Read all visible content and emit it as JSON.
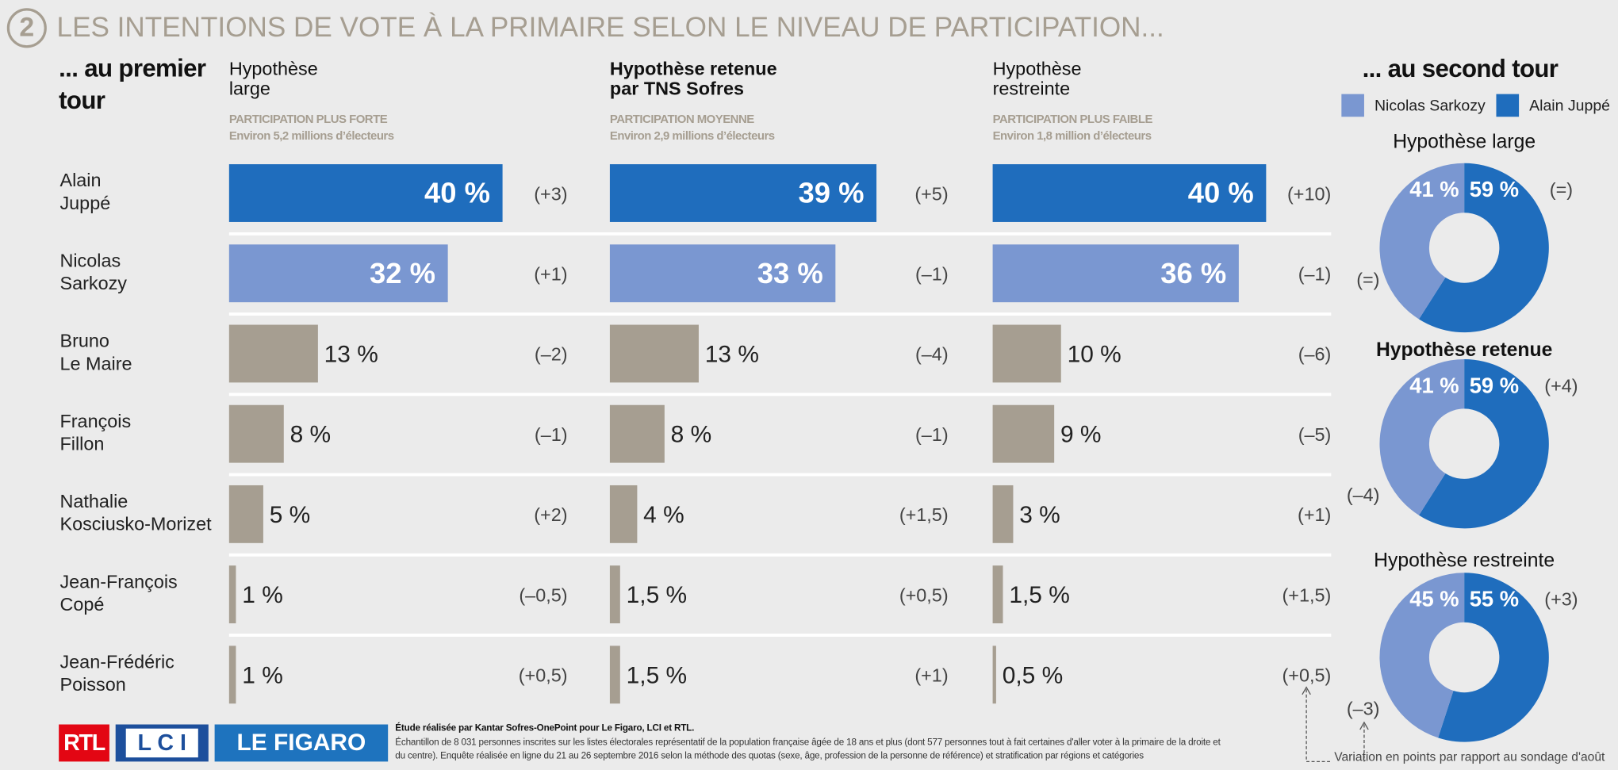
{
  "number": "2",
  "title": "LES INTENTIONS DE VOTE À LA PRIMAIRE SELON LE NIVEAU DE PARTICIPATION...",
  "first_round": "... au premier tour",
  "second_round": "... au second tour",
  "chart_data": [
    {
      "type": "bar",
      "title": "Hypothèse large",
      "subtitle": "PARTICIPATION PLUS FORTE",
      "note": "Environ 5,2 millions d’électeurs",
      "categories": [
        "Alain Juppé",
        "Nicolas Sarkozy",
        "Bruno Le Maire",
        "François Fillon",
        "Nathalie Kosciusko-Morizet",
        "Jean-François Copé",
        "Jean-Frédéric Poisson"
      ],
      "values": [
        40,
        32,
        13,
        8,
        5,
        1,
        1
      ],
      "value_labels": [
        "40 %",
        "32 %",
        "13 %",
        "8 %",
        "5 %",
        "1 %",
        "1 %"
      ],
      "changes": [
        "(+3)",
        "(+1)",
        "(–2)",
        "(–1)",
        "(+2)",
        "(–0,5)",
        "(+0,5)"
      ],
      "colors": [
        "#1f6dbd",
        "#7a97d1",
        "#a69e91",
        "#a69e91",
        "#a69e91",
        "#a69e91",
        "#a69e91"
      ],
      "xlim": [
        0,
        40
      ]
    },
    {
      "type": "bar",
      "title": "Hypothèse retenue par TNS Sofres",
      "subtitle": "PARTICIPATION MOYENNE",
      "note": "Environ 2,9 millions d’électeurs",
      "values": [
        39,
        33,
        13,
        8,
        4,
        1.5,
        1.5
      ],
      "value_labels": [
        "39 %",
        "33 %",
        "13 %",
        "8 %",
        "4 %",
        "1,5 %",
        "1,5 %"
      ],
      "changes": [
        "(+5)",
        "(–1)",
        "(–4)",
        "(–1)",
        "(+1,5)",
        "(+0,5)",
        "(+1)"
      ],
      "colors": [
        "#1f6dbd",
        "#7a97d1",
        "#a69e91",
        "#a69e91",
        "#a69e91",
        "#a69e91",
        "#a69e91"
      ],
      "xlim": [
        0,
        40
      ]
    },
    {
      "type": "bar",
      "title": "Hypothèse restreinte",
      "subtitle": "PARTICIPATION PLUS FAIBLE",
      "note": "Environ 1,8 million d’électeurs",
      "values": [
        40,
        36,
        10,
        9,
        3,
        1.5,
        0.5
      ],
      "value_labels": [
        "40 %",
        "36 %",
        "10 %",
        "9 %",
        "3 %",
        "1,5 %",
        "0,5 %"
      ],
      "changes": [
        "(+10)",
        "(–1)",
        "(–6)",
        "(–5)",
        "(+1)",
        "(+1,5)",
        "(+0,5)"
      ],
      "colors": [
        "#1f6dbd",
        "#7a97d1",
        "#a69e91",
        "#a69e91",
        "#a69e91",
        "#a69e91",
        "#a69e91"
      ],
      "xlim": [
        0,
        40
      ]
    },
    {
      "type": "pie",
      "title": "Hypothèse large",
      "categories": [
        "Nicolas Sarkozy",
        "Alain Juppé"
      ],
      "colors": [
        "#7a97d1",
        "#1f6dbd"
      ],
      "values": [
        41,
        59
      ],
      "value_labels": [
        "41 %",
        "59 %"
      ],
      "changes": [
        "(=)",
        "(=)"
      ]
    },
    {
      "type": "pie",
      "title": "Hypothèse retenue",
      "values": [
        41,
        59
      ],
      "value_labels": [
        "41 %",
        "59 %"
      ],
      "changes": [
        "(–4)",
        "(+4)"
      ]
    },
    {
      "type": "pie",
      "title": "Hypothèse restreinte",
      "values": [
        45,
        55
      ],
      "value_labels": [
        "45 %",
        "55 %"
      ],
      "changes": [
        "(–3)",
        "(+3)"
      ]
    }
  ],
  "footer": {
    "logos": [
      "RTL",
      "L C I",
      "LE FIGARO"
    ],
    "source": "Étude réalisée par Kantar Sofres-OnePoint pour Le Figaro, LCI et RTL.",
    "method": "Échantillon de 8 031 personnes inscrites sur les listes électorales représentatif de la population française âgée de 18 ans et plus (dont 577 personnes tout à fait certaines d'aller voter à la primaire de la droite et du centre). Enquête réalisée en ligne du 21 au 26 septembre 2016 selon la méthode des quotas (sexe, âge, profession de la personne de référence) et stratification par régions et catégories",
    "variation_note": "Variation en points par rapport au sondage d'août"
  }
}
